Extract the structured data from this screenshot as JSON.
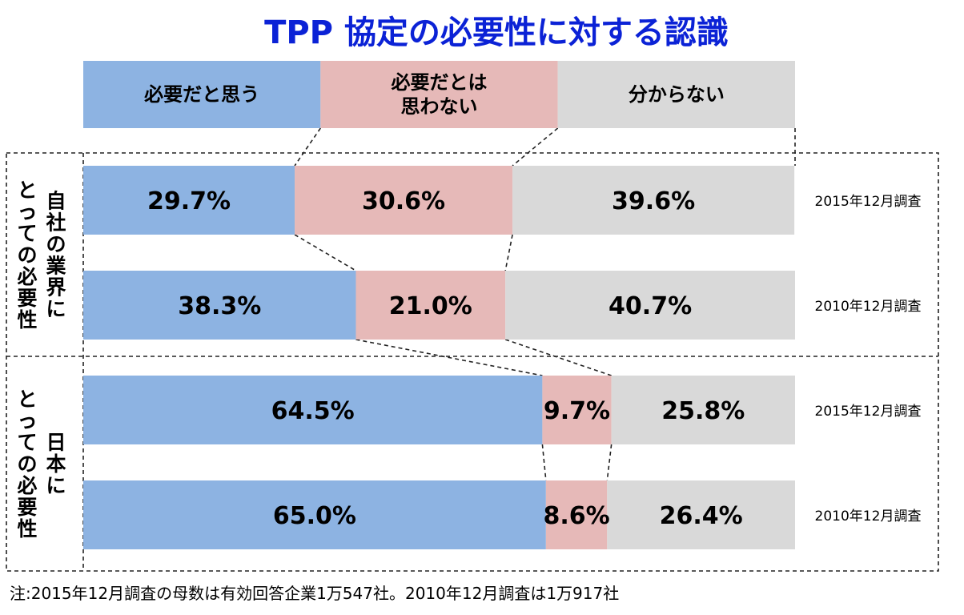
{
  "chart_data": {
    "type": "bar",
    "orientation": "horizontal",
    "stacked": true,
    "title": "TPP 協定の必要性に対する認識",
    "legend": [
      {
        "name": "必要だと思う",
        "lines": [
          "必要だと思う"
        ],
        "color": "#8db3e2"
      },
      {
        "name": "必要だとは思わない",
        "lines": [
          "必要だとは",
          "思わない"
        ],
        "color": "#e6b9b8"
      },
      {
        "name": "分からない",
        "lines": [
          "分からない"
        ],
        "color": "#d9d9d9"
      }
    ],
    "groups": [
      {
        "label": "自社の業界にとっての必要性",
        "vertical_lines": [
          "自社の業界に",
          "とっての必要性"
        ]
      },
      {
        "label": "日本にとっての必要性",
        "vertical_lines": [
          "日本に",
          "とっての必要性"
        ]
      }
    ],
    "rows": [
      {
        "group": 0,
        "label": "2015年12月調査",
        "values": [
          29.7,
          30.6,
          39.6
        ],
        "value_labels": [
          "29.7%",
          "30.6%",
          "39.6%"
        ]
      },
      {
        "group": 0,
        "label": "2010年12月調査",
        "values": [
          38.3,
          21.0,
          40.7
        ],
        "value_labels": [
          "38.3%",
          "21.0%",
          "40.7%"
        ]
      },
      {
        "group": 1,
        "label": "2015年12月調査",
        "values": [
          64.5,
          9.7,
          25.8
        ],
        "value_labels": [
          "64.5%",
          "9.7%",
          "25.8%"
        ]
      },
      {
        "group": 1,
        "label": "2010年12月調査",
        "values": [
          65.0,
          8.6,
          26.4
        ],
        "value_labels": [
          "65.0%",
          "8.6%",
          "26.4%"
        ]
      }
    ],
    "xlim": [
      0,
      100
    ],
    "grid": false,
    "legend_position": "top",
    "note": "注:2015年12月調査の母数は有効回答企業1万547社。2010年12月調査は1万917社"
  },
  "colors": {
    "title": "#0b22d6",
    "text": "#000000",
    "dashed": "#222222"
  }
}
